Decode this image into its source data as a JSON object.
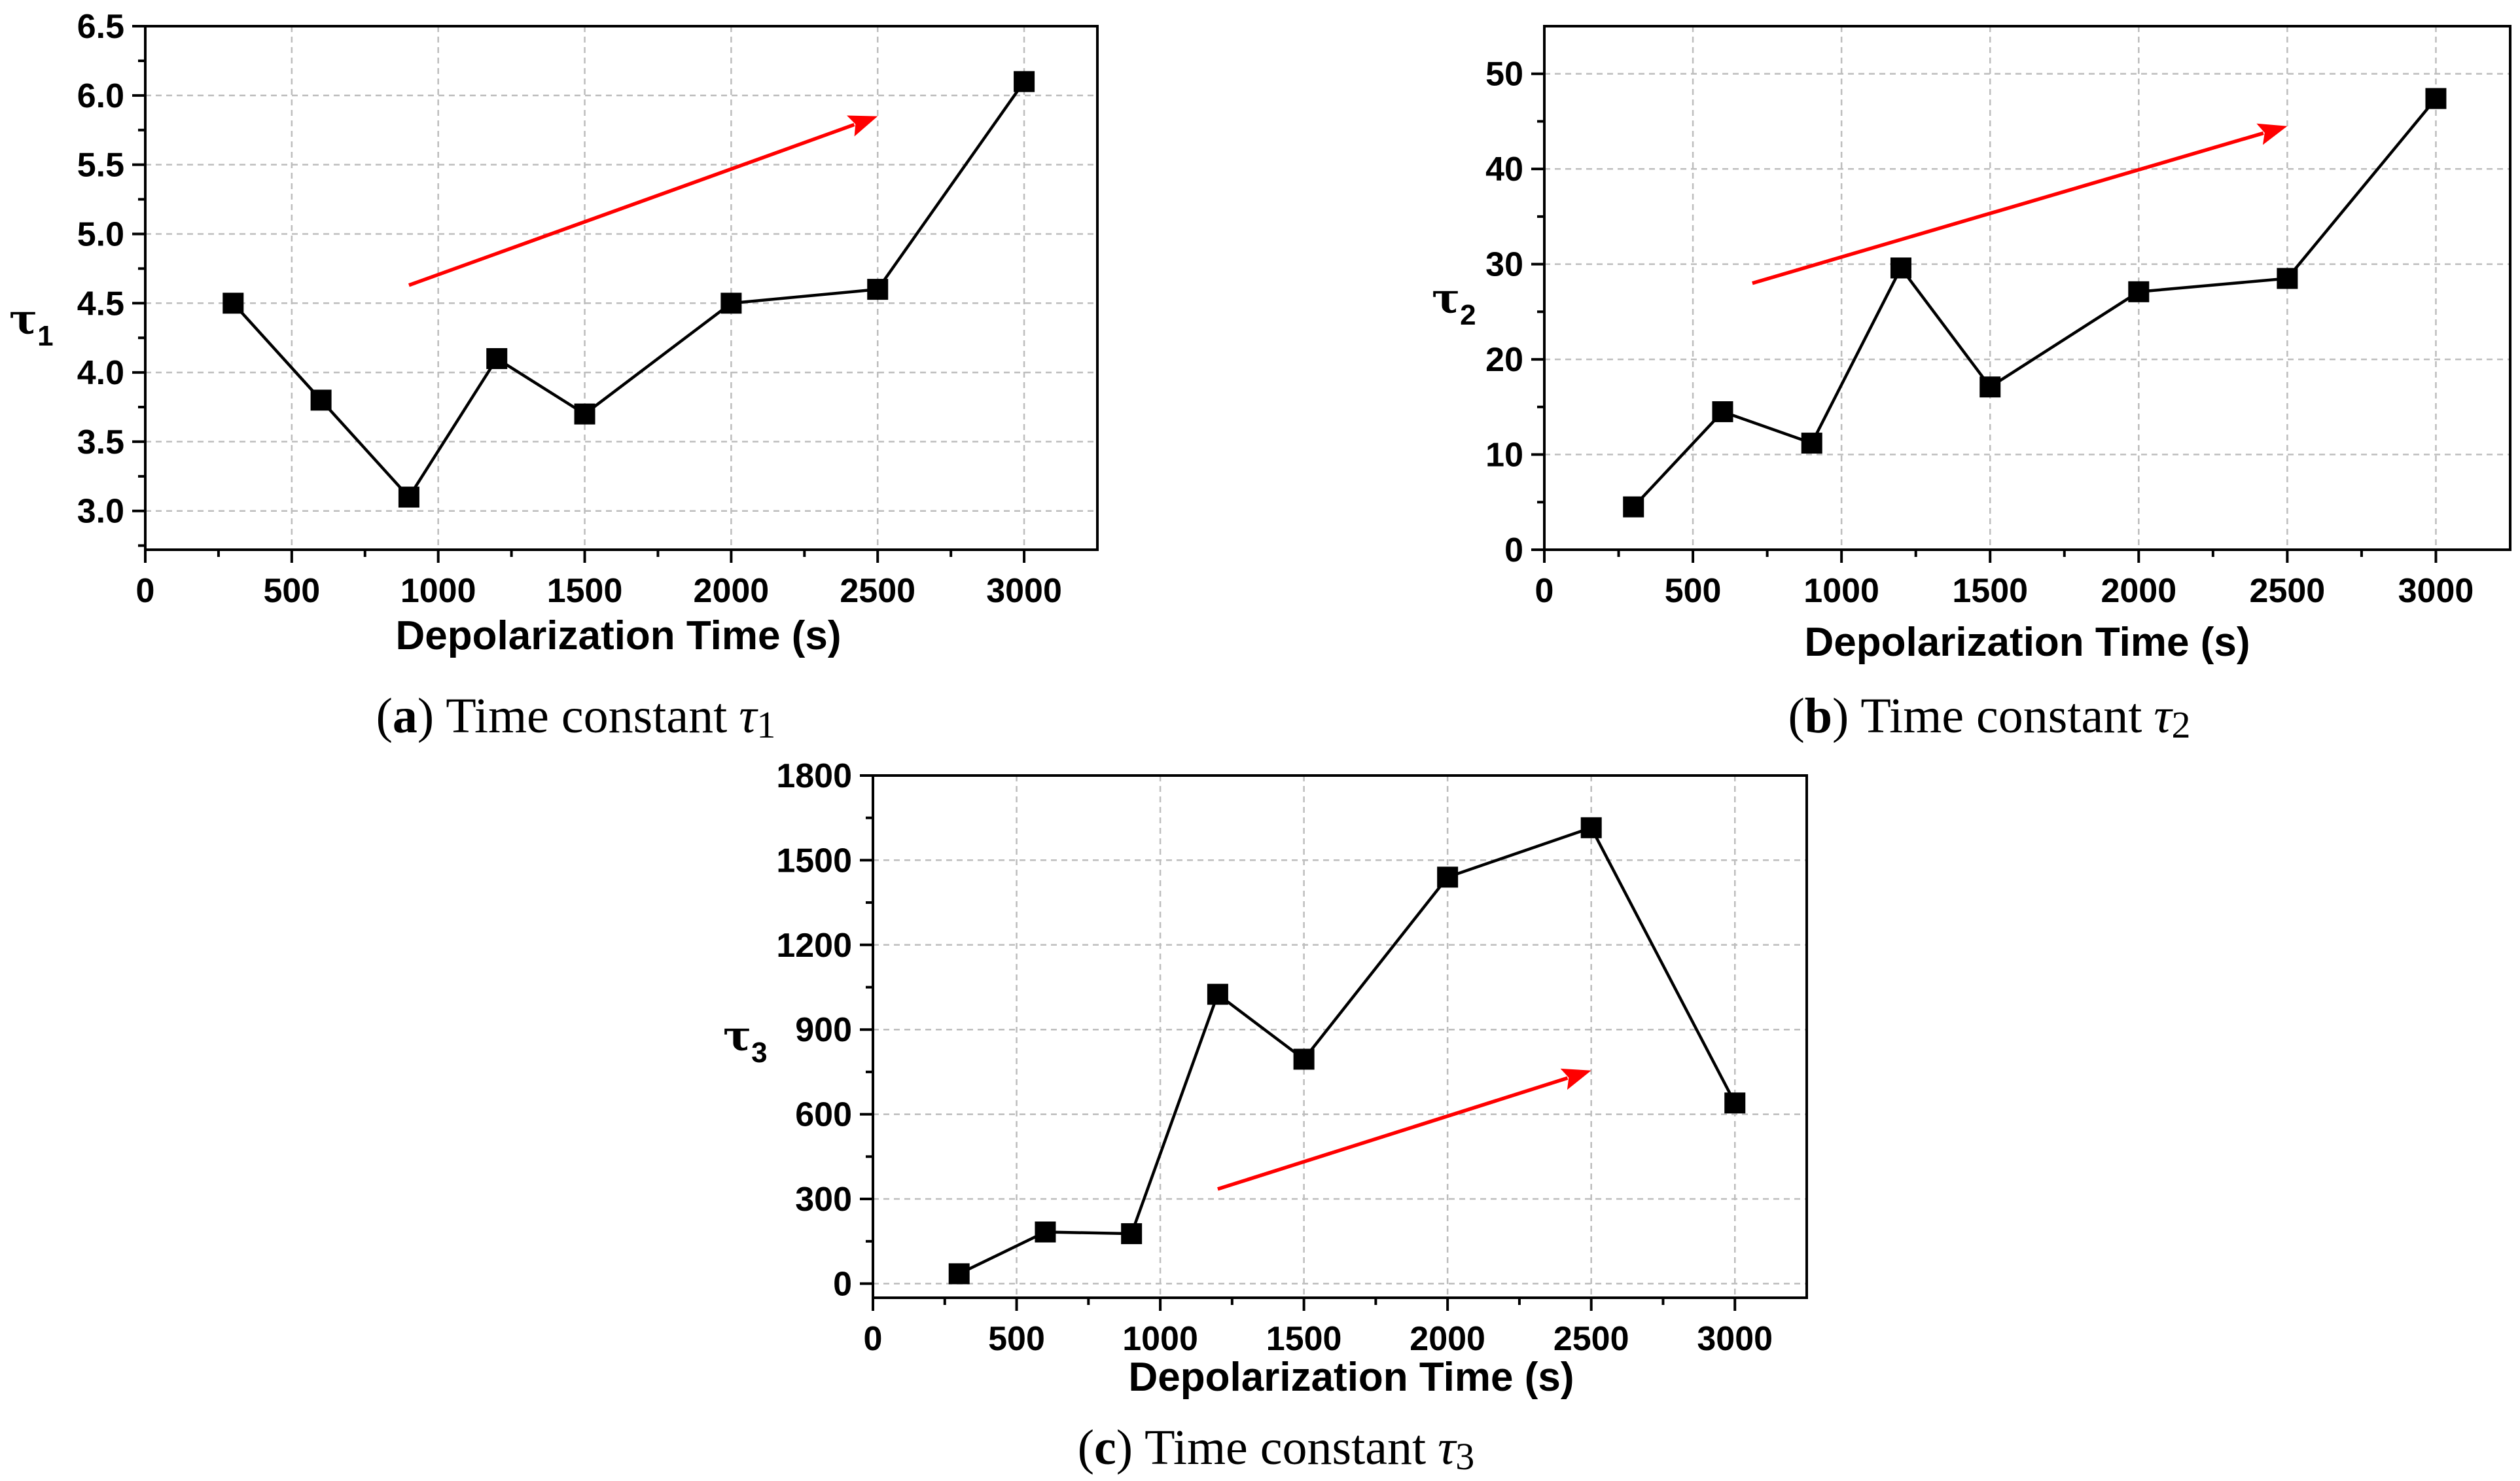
{
  "chart_data": [
    {
      "panel": "a",
      "type": "line",
      "title": "",
      "xlabel": "Depolarization Time (s)",
      "ylabel": "τ",
      "ylabel_index": "1",
      "xlim": [
        0,
        3250
      ],
      "ylim": [
        2.72,
        6.5
      ],
      "xticks": [
        0,
        500,
        1000,
        1500,
        2000,
        2500,
        3000
      ],
      "yticks": [
        3.0,
        3.5,
        4.0,
        4.5,
        5.0,
        5.5,
        6.0,
        6.5
      ],
      "ytick_decimals": 1,
      "grid": true,
      "marker": "square",
      "series": [
        {
          "name": "τ1",
          "x": [
            300,
            600,
            900,
            1200,
            1500,
            2000,
            2500,
            3000
          ],
          "y": [
            4.5,
            3.8,
            3.1,
            4.1,
            3.7,
            4.5,
            4.6,
            6.1
          ],
          "color": "#000000"
        }
      ],
      "trend_arrow": {
        "from": [
          900,
          4.63
        ],
        "to": [
          2500,
          5.85
        ],
        "color": "#ff0000"
      },
      "caption": {
        "paren_open": "(",
        "label": "a",
        "paren_close": ")",
        "text": "Time constant",
        "symbol": "τ",
        "index": "1"
      }
    },
    {
      "panel": "b",
      "type": "line",
      "title": "",
      "xlabel": "Depolarization Time (s)",
      "ylabel": "τ",
      "ylabel_index": "2",
      "xlim": [
        0,
        3250
      ],
      "ylim": [
        0,
        55
      ],
      "xticks": [
        0,
        500,
        1000,
        1500,
        2000,
        2500,
        3000
      ],
      "yticks": [
        0,
        10,
        20,
        30,
        40,
        50
      ],
      "ytick_decimals": 0,
      "grid": true,
      "marker": "square",
      "series": [
        {
          "name": "τ2",
          "x": [
            300,
            600,
            900,
            1200,
            1500,
            2000,
            2500,
            3000
          ],
          "y": [
            4.5,
            14.5,
            11.2,
            29.6,
            17.1,
            27.1,
            28.5,
            47.4
          ],
          "color": "#000000"
        }
      ],
      "trend_arrow": {
        "from": [
          700,
          28.0
        ],
        "to": [
          2500,
          44.5
        ],
        "color": "#ff0000"
      },
      "caption": {
        "paren_open": "(",
        "label": "b",
        "paren_close": ")",
        "text": "Time constant",
        "symbol": "τ",
        "index": "2"
      }
    },
    {
      "panel": "c",
      "type": "line",
      "title": "",
      "xlabel": "Depolarization Time (s)",
      "ylabel": "τ",
      "ylabel_index": "3",
      "xlim": [
        0,
        3250
      ],
      "ylim": [
        -50,
        1800
      ],
      "xticks": [
        0,
        500,
        1000,
        1500,
        2000,
        2500,
        3000
      ],
      "yticks": [
        0,
        300,
        600,
        900,
        1200,
        1500,
        1800
      ],
      "ytick_decimals": 0,
      "grid": true,
      "marker": "square",
      "series": [
        {
          "name": "τ3",
          "x": [
            300,
            600,
            900,
            1200,
            1500,
            2000,
            2500,
            3000
          ],
          "y": [
            35,
            183,
            177,
            1025,
            795,
            1440,
            1615,
            640
          ],
          "color": "#000000"
        }
      ],
      "trend_arrow": {
        "from": [
          1200,
          335
        ],
        "to": [
          2500,
          755
        ],
        "color": "#ff0000"
      },
      "caption": {
        "paren_open": "(",
        "label": "c",
        "paren_close": ")",
        "text": "Time constant",
        "symbol": "τ",
        "index": "3"
      }
    }
  ]
}
